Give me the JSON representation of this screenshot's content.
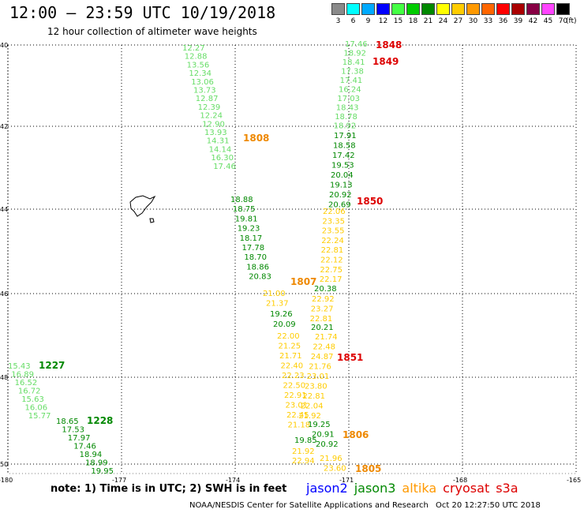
{
  "title": "12:00 – 23:59 UTC 10/19/2018",
  "subtitle": "12 hour collection of altimeter wave heights",
  "colorbar": {
    "labels": [
      "3",
      "6",
      "9",
      "12",
      "15",
      "18",
      "21",
      "24",
      "27",
      "30",
      "33",
      "36",
      "39",
      "42",
      "45",
      "70"
    ],
    "colors": [
      "#8a8a8a",
      "#00ffff",
      "#00aaff",
      "#0000ff",
      "#44ff44",
      "#00cc00",
      "#008800",
      "#ffff00",
      "#ffcc00",
      "#ff9900",
      "#ff6600",
      "#ff0000",
      "#aa0000",
      "#880044",
      "#ff44ff",
      "#000000"
    ],
    "units": "(ft)"
  },
  "axes": {
    "lat_labels": [
      "40",
      "42",
      "44",
      "46",
      "48",
      "50"
    ],
    "lon_labels": [
      "-180",
      "-177",
      "-174",
      "-171",
      "-168",
      "-165"
    ]
  },
  "tracks": [
    {
      "id": "jason3-1808a",
      "color": "#66dd66",
      "values": [
        "12.27",
        "12.88",
        "13.56",
        "12.34",
        "13.06",
        "13.73",
        "12.87",
        "12.39",
        "12.24",
        "12.90",
        "13.93",
        "14.31",
        "14.14",
        "16.30",
        "17.46"
      ]
    },
    {
      "id": "jason3-1808b",
      "color": "#008800",
      "values": [
        "18.88",
        "18.75",
        "19.81",
        "19.23",
        "18.17",
        "17.78",
        "18.70",
        "18.86",
        "20.83"
      ]
    },
    {
      "id": "altika-1807",
      "color": "#ffcc00",
      "values": [
        "21.00",
        "21.37"
      ]
    },
    {
      "id": "jason3-1807",
      "color": "#008800",
      "values": [
        "19.26",
        "20.09"
      ]
    },
    {
      "id": "altika-1807b",
      "color": "#ffcc00",
      "values": [
        "22.00",
        "21.25",
        "21.71",
        "22.40",
        "22.23",
        "22.50",
        "22.91",
        "23.01",
        "22.45",
        "21.18"
      ]
    },
    {
      "id": "jason3-1850a",
      "color": "#66dd66",
      "values": [
        "17.46",
        "18.92",
        "18.41",
        "17.38",
        "17.41",
        "16.24",
        "17.03",
        "18.43",
        "18.78",
        "18.92"
      ]
    },
    {
      "id": "jason3-1850b",
      "color": "#008800",
      "values": [
        "17.91",
        "18.58",
        "17.42",
        "19.53",
        "20.04",
        "19.13",
        "20.92",
        "20.69"
      ]
    },
    {
      "id": "altika-1851a",
      "color": "#ffcc00",
      "values": [
        "22.06",
        "23.35",
        "23.55",
        "22.24",
        "22.81",
        "22.12",
        "22.75",
        "22.17"
      ]
    },
    {
      "id": "jason3-1851",
      "color": "#008800",
      "values": [
        "20.38"
      ]
    },
    {
      "id": "altika-1851b",
      "color": "#ffcc00",
      "values": [
        "22.92",
        "23.27",
        "22.81"
      ]
    },
    {
      "id": "jason3-1851b",
      "color": "#008800",
      "values": [
        "20.21"
      ]
    },
    {
      "id": "altika-1851c",
      "color": "#ffcc00",
      "values": [
        "21.74",
        "22.48",
        "24.87",
        "21.76",
        "23.01",
        "23.80",
        "22.81",
        "22.04",
        "21.92"
      ]
    },
    {
      "id": "jason3-1806",
      "color": "#008800",
      "values": [
        "19.25",
        "20.91",
        "20.92"
      ]
    },
    {
      "id": "altika-1805",
      "color": "#ffcc00",
      "values": [
        "21.96",
        "23.60"
      ]
    },
    {
      "id": "jason3-1806b",
      "color": "#008800",
      "values": [
        "19.85"
      ]
    },
    {
      "id": "altika-1805b",
      "color": "#ffcc00",
      "values": [
        "21.92",
        "22.94"
      ]
    },
    {
      "id": "jason3-1227a",
      "color": "#66dd66",
      "values": [
        "15.43",
        "16.89",
        "16.52",
        "16.72",
        "15.63",
        "16.06",
        "15.77"
      ]
    },
    {
      "id": "jason3-1227b",
      "color": "#008800",
      "values": [
        "18.65",
        "17.53",
        "17.97",
        "17.46",
        "18.94",
        "18.99",
        "19.95"
      ]
    }
  ],
  "track_labels": [
    {
      "text": "1848",
      "color": "#dd0000"
    },
    {
      "text": "1849",
      "color": "#dd0000"
    },
    {
      "text": "1808",
      "color": "#ee8800"
    },
    {
      "text": "1850",
      "color": "#dd0000"
    },
    {
      "text": "1807",
      "color": "#ee8800"
    },
    {
      "text": "1851",
      "color": "#dd0000"
    },
    {
      "text": "1227",
      "color": "#008800"
    },
    {
      "text": "1228",
      "color": "#008800"
    },
    {
      "text": "1806",
      "color": "#ee8800"
    },
    {
      "text": "1805",
      "color": "#ee8800"
    }
  ],
  "note": "note: 1) Time is in UTC; 2) SWH is in feet",
  "legend": [
    {
      "name": "jason2",
      "color": "#0000ff"
    },
    {
      "name": "jason3",
      "color": "#008800"
    },
    {
      "name": "altika",
      "color": "#ff9900"
    },
    {
      "name": "cryosat",
      "color": "#dd0000"
    },
    {
      "name": "s3a",
      "color": "#dd0000"
    }
  ],
  "footer": "NOAA/NESDIS Center for Satellite Applications and Research",
  "footer_time": "Oct 20 12:27:50 UTC 2018"
}
